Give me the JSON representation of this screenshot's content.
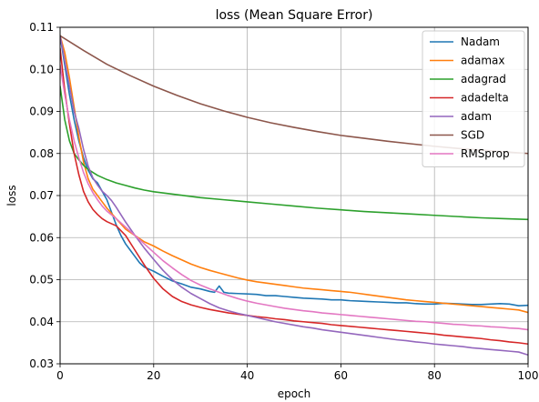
{
  "chart_data": {
    "type": "line",
    "title": "loss (Mean Square Error)",
    "xlabel": "epoch",
    "ylabel": "loss",
    "xlim": [
      0,
      100
    ],
    "ylim": [
      0.03,
      0.11
    ],
    "xticks": [
      0,
      20,
      40,
      60,
      80,
      100
    ],
    "yticks": [
      0.03,
      0.04,
      0.05,
      0.06,
      0.07,
      0.08,
      0.09,
      0.1,
      0.11
    ],
    "ytick_labels": [
      "0.03",
      "0.04",
      "0.05",
      "0.06",
      "0.07",
      "0.08",
      "0.09",
      "0.10",
      "0.11"
    ],
    "grid": true,
    "legend": "top-right",
    "series": [
      {
        "name": "Nadam",
        "color": "#1f77b4",
        "x": [
          0,
          1,
          2,
          3,
          4,
          5,
          6,
          7,
          8,
          9,
          10,
          11,
          12,
          13,
          14,
          15,
          16,
          17,
          18,
          19,
          20,
          22,
          24,
          26,
          28,
          30,
          31,
          32,
          33,
          34,
          35,
          36,
          38,
          40,
          42,
          44,
          46,
          48,
          50,
          52,
          54,
          56,
          58,
          60,
          62,
          64,
          66,
          68,
          70,
          72,
          74,
          76,
          78,
          80,
          82,
          84,
          86,
          88,
          90,
          92,
          94,
          96,
          98,
          100
        ],
        "y": [
          0.108,
          0.101,
          0.094,
          0.088,
          0.083,
          0.079,
          0.076,
          0.074,
          0.073,
          0.071,
          0.069,
          0.066,
          0.063,
          0.0605,
          0.0585,
          0.057,
          0.0555,
          0.054,
          0.053,
          0.0525,
          0.052,
          0.0508,
          0.0497,
          0.049,
          0.0482,
          0.0478,
          0.0475,
          0.0472,
          0.047,
          0.0485,
          0.047,
          0.0468,
          0.0467,
          0.0466,
          0.0465,
          0.0462,
          0.0462,
          0.046,
          0.0458,
          0.0456,
          0.0455,
          0.0454,
          0.0452,
          0.0452,
          0.045,
          0.0449,
          0.0448,
          0.0447,
          0.0446,
          0.0445,
          0.0445,
          0.0443,
          0.0442,
          0.0442,
          0.0444,
          0.0443,
          0.0442,
          0.0441,
          0.0441,
          0.0442,
          0.0443,
          0.0442,
          0.0438,
          0.0439
        ]
      },
      {
        "name": "adamax",
        "color": "#ff7f0e",
        "x": [
          0,
          1,
          2,
          3,
          4,
          5,
          6,
          7,
          8,
          9,
          10,
          12,
          14,
          16,
          18,
          20,
          22,
          24,
          26,
          28,
          30,
          32,
          34,
          36,
          38,
          40,
          42,
          44,
          46,
          48,
          50,
          52,
          54,
          56,
          58,
          60,
          62,
          64,
          66,
          68,
          70,
          72,
          74,
          76,
          78,
          80,
          82,
          84,
          86,
          88,
          90,
          92,
          94,
          96,
          98,
          100
        ],
        "y": [
          0.108,
          0.104,
          0.098,
          0.091,
          0.084,
          0.078,
          0.074,
          0.0715,
          0.07,
          0.0685,
          0.067,
          0.0645,
          0.062,
          0.0605,
          0.059,
          0.058,
          0.0568,
          0.0557,
          0.0547,
          0.0537,
          0.0529,
          0.0522,
          0.0516,
          0.051,
          0.0504,
          0.0499,
          0.0495,
          0.0492,
          0.0489,
          0.0486,
          0.0483,
          0.048,
          0.0478,
          0.0476,
          0.0474,
          0.0472,
          0.047,
          0.0467,
          0.0464,
          0.0461,
          0.0458,
          0.0455,
          0.0452,
          0.045,
          0.0448,
          0.0446,
          0.0444,
          0.0442,
          0.044,
          0.0438,
          0.0436,
          0.0434,
          0.0432,
          0.043,
          0.0428,
          0.0422
        ]
      },
      {
        "name": "adagrad",
        "color": "#2ca02c",
        "x": [
          0,
          1,
          2,
          3,
          4,
          5,
          6,
          8,
          10,
          12,
          14,
          16,
          18,
          20,
          25,
          30,
          35,
          40,
          45,
          50,
          55,
          60,
          65,
          70,
          75,
          80,
          85,
          90,
          95,
          100
        ],
        "y": [
          0.096,
          0.088,
          0.083,
          0.08,
          0.0785,
          0.0772,
          0.0762,
          0.0748,
          0.0738,
          0.073,
          0.0724,
          0.0718,
          0.0713,
          0.0709,
          0.0702,
          0.0695,
          0.069,
          0.0685,
          0.068,
          0.0675,
          0.067,
          0.0666,
          0.0662,
          0.0659,
          0.0656,
          0.0653,
          0.065,
          0.0647,
          0.0645,
          0.0643
        ]
      },
      {
        "name": "adadelta",
        "color": "#d62728",
        "x": [
          0,
          1,
          2,
          3,
          4,
          5,
          6,
          7,
          8,
          9,
          10,
          12,
          14,
          16,
          18,
          20,
          22,
          24,
          26,
          28,
          30,
          32,
          34,
          36,
          38,
          40,
          42,
          44,
          46,
          48,
          50,
          52,
          54,
          56,
          58,
          60,
          62,
          64,
          66,
          68,
          70,
          72,
          74,
          76,
          78,
          80,
          82,
          84,
          86,
          88,
          90,
          92,
          94,
          96,
          98,
          100
        ],
        "y": [
          0.105,
          0.095,
          0.087,
          0.08,
          0.075,
          0.071,
          0.0685,
          0.0667,
          0.0655,
          0.0645,
          0.0638,
          0.0628,
          0.0605,
          0.057,
          0.0535,
          0.0503,
          0.0478,
          0.046,
          0.0448,
          0.044,
          0.0434,
          0.0429,
          0.0425,
          0.0421,
          0.0418,
          0.0415,
          0.0412,
          0.041,
          0.0407,
          0.0405,
          0.0402,
          0.04,
          0.0398,
          0.0396,
          0.0393,
          0.0391,
          0.0389,
          0.0387,
          0.0385,
          0.0383,
          0.0381,
          0.0379,
          0.0377,
          0.0375,
          0.0373,
          0.0371,
          0.0368,
          0.0366,
          0.0364,
          0.0362,
          0.036,
          0.0357,
          0.0355,
          0.0352,
          0.035,
          0.0347
        ]
      },
      {
        "name": "adam",
        "color": "#9467bd",
        "x": [
          0,
          1,
          2,
          3,
          4,
          5,
          6,
          7,
          8,
          9,
          10,
          11,
          12,
          14,
          16,
          18,
          20,
          22,
          24,
          26,
          28,
          30,
          32,
          34,
          36,
          38,
          40,
          42,
          44,
          46,
          48,
          50,
          52,
          54,
          56,
          58,
          60,
          62,
          64,
          66,
          68,
          70,
          72,
          74,
          76,
          78,
          80,
          82,
          84,
          86,
          88,
          90,
          92,
          94,
          96,
          98,
          100
        ],
        "y": [
          0.108,
          0.102,
          0.096,
          0.09,
          0.086,
          0.081,
          0.077,
          0.0742,
          0.0725,
          0.071,
          0.07,
          0.0688,
          0.0672,
          0.0637,
          0.0605,
          0.0575,
          0.0548,
          0.0522,
          0.05,
          0.0482,
          0.0467,
          0.0455,
          0.0443,
          0.0433,
          0.0426,
          0.042,
          0.0415,
          0.041,
          0.0405,
          0.04,
          0.0396,
          0.0392,
          0.0388,
          0.0385,
          0.0381,
          0.0378,
          0.0375,
          0.0372,
          0.0369,
          0.0366,
          0.0363,
          0.036,
          0.0357,
          0.0355,
          0.0352,
          0.035,
          0.0347,
          0.0345,
          0.0343,
          0.0341,
          0.0338,
          0.0336,
          0.0334,
          0.0332,
          0.033,
          0.0328,
          0.0321
        ]
      },
      {
        "name": "SGD",
        "color": "#8c564b",
        "x": [
          0,
          5,
          10,
          15,
          20,
          25,
          30,
          35,
          40,
          45,
          50,
          55,
          60,
          65,
          70,
          75,
          80,
          85,
          90,
          95,
          100
        ],
        "y": [
          0.108,
          0.1045,
          0.1012,
          0.0985,
          0.096,
          0.0938,
          0.0918,
          0.0901,
          0.0886,
          0.0873,
          0.0862,
          0.0852,
          0.0843,
          0.0836,
          0.0829,
          0.0823,
          0.0817,
          0.0812,
          0.0808,
          0.0804,
          0.08
        ]
      },
      {
        "name": "RMSprop",
        "color": "#e377c2",
        "x": [
          0,
          1,
          2,
          3,
          4,
          5,
          6,
          7,
          8,
          9,
          10,
          12,
          14,
          16,
          18,
          20,
          22,
          24,
          26,
          28,
          30,
          32,
          34,
          36,
          38,
          40,
          42,
          44,
          46,
          48,
          50,
          52,
          54,
          56,
          58,
          60,
          62,
          64,
          66,
          68,
          70,
          72,
          74,
          76,
          78,
          80,
          82,
          84,
          86,
          88,
          90,
          92,
          94,
          96,
          98,
          100
        ],
        "y": [
          0.101,
          0.094,
          0.088,
          0.083,
          0.079,
          0.0755,
          0.0728,
          0.0707,
          0.069,
          0.0675,
          0.0663,
          0.0645,
          0.0625,
          0.0605,
          0.0585,
          0.0565,
          0.0545,
          0.0528,
          0.0512,
          0.0498,
          0.0487,
          0.0478,
          0.047,
          0.0462,
          0.0455,
          0.0449,
          0.0444,
          0.044,
          0.0436,
          0.0432,
          0.0429,
          0.0426,
          0.0424,
          0.0421,
          0.0419,
          0.0417,
          0.0415,
          0.0413,
          0.0411,
          0.0409,
          0.0407,
          0.0405,
          0.0403,
          0.0401,
          0.04,
          0.0398,
          0.0396,
          0.0394,
          0.0393,
          0.0391,
          0.039,
          0.0388,
          0.0387,
          0.0385,
          0.0384,
          0.0381
        ]
      }
    ]
  }
}
